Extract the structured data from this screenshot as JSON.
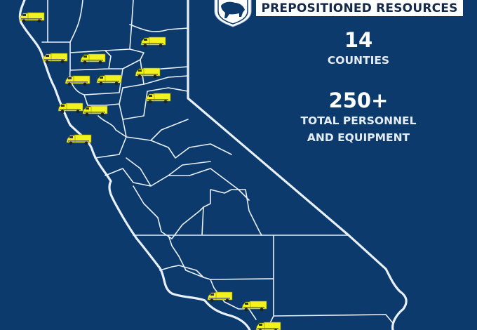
{
  "header": {
    "title": "PREPOSITIONED RESOURCES",
    "logo_icon": "bear-shield-logo"
  },
  "stats": [
    {
      "value": "14",
      "label": "COUNTIES"
    },
    {
      "value": "250+",
      "label_line1": "TOTAL PERSONNEL",
      "label_line2": "AND EQUIPMENT"
    }
  ],
  "map": {
    "region": "California counties",
    "marker_icon": "fire-engine-icon",
    "marker_count": 14
  },
  "colors": {
    "background": "#0c3a6c",
    "lines": "#ffffff",
    "truck": "#f2f21e",
    "title_text": "#14294a"
  }
}
